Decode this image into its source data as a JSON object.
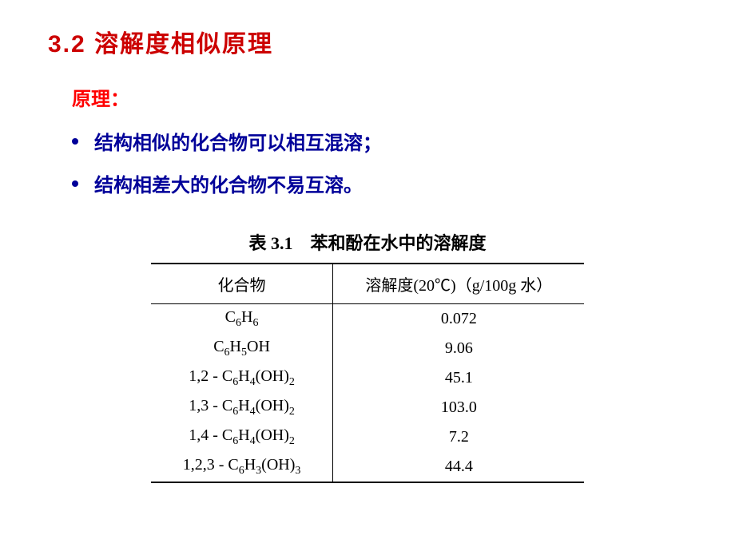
{
  "section": {
    "number": "3.2",
    "title": "溶解度相似原理"
  },
  "principle": {
    "label": "原理：",
    "points": [
      "结构相似的化合物可以相互混溶；",
      "结构相差大的化合物不易互溶。"
    ]
  },
  "table": {
    "caption_number": "表 3.1",
    "caption_title": "苯和酚在水中的溶解度",
    "columns": [
      "化合物",
      "溶解度(20℃)（g/100g 水）"
    ],
    "rows": [
      {
        "compound_html": "C<sub>6</sub>H<sub>6</sub>",
        "solubility": "0.072"
      },
      {
        "compound_html": "C<sub>6</sub>H<sub>5</sub>OH",
        "solubility": "9.06"
      },
      {
        "compound_html": "1,2 - C<sub>6</sub>H<sub>4</sub>(OH)<sub>2</sub>",
        "solubility": "45.1"
      },
      {
        "compound_html": "1,3 - C<sub>6</sub>H<sub>4</sub>(OH)<sub>2</sub>",
        "solubility": "103.0"
      },
      {
        "compound_html": "1,4 - C<sub>6</sub>H<sub>4</sub>(OH)<sub>2</sub>",
        "solubility": "7.2"
      },
      {
        "compound_html": "1,2,3 - C<sub>6</sub>H<sub>3</sub>(OH)<sub>3</sub>",
        "solubility": "44.4"
      }
    ]
  },
  "colors": {
    "title_color": "#cc0000",
    "label_color": "#ff0000",
    "bullet_color": "#000099",
    "table_text": "#000000",
    "background": "#ffffff"
  }
}
